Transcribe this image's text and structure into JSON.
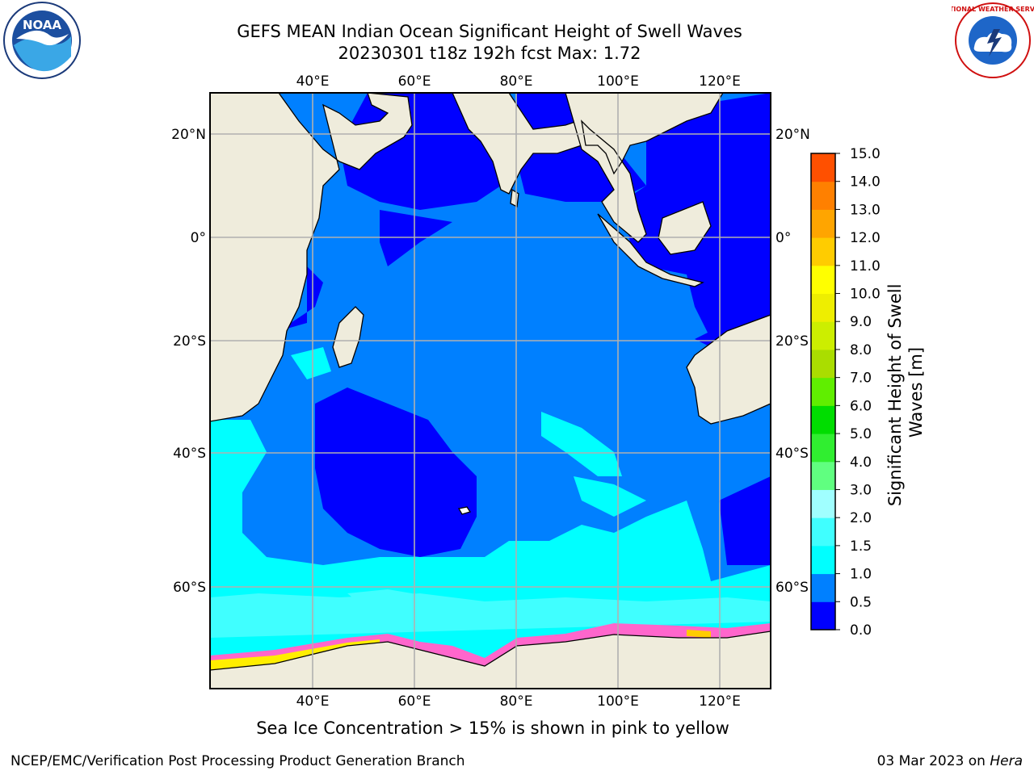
{
  "title": {
    "line1": "GEFS MEAN Indian Ocean Significant Height of Swell Waves",
    "line2": "20230301 t18z 192h fcst   Max: 1.72"
  },
  "map": {
    "lon_ticks": [
      "40°E",
      "60°E",
      "80°E",
      "100°E",
      "120°E"
    ],
    "lat_ticks_left": [
      "20°N",
      "0°",
      "20°S",
      "40°S",
      "60°S"
    ],
    "lat_ticks_right": [
      "20°N",
      "0°",
      "20°S",
      "40°S",
      "60°S"
    ],
    "lon_range": [
      20,
      130
    ],
    "lat_range": [
      -72,
      26
    ],
    "colors": {
      "land": "#efecdc",
      "grid": "#b0b0b0",
      "coast": "#000000"
    }
  },
  "colorbar": {
    "label": "Significant Height of Swell Waves [m]",
    "ticks": [
      "15.0",
      "14.0",
      "13.0",
      "12.0",
      "11.0",
      "10.0",
      "9.0",
      "8.0",
      "7.0",
      "6.0",
      "5.0",
      "4.0",
      "3.0",
      "2.0",
      "1.5",
      "1.0",
      "0.5",
      "0.0"
    ],
    "colors": [
      "#0000ff",
      "#0080ff",
      "#00ffff",
      "#40ffff",
      "#a0ffff",
      "#60ff80",
      "#30ee30",
      "#00dd00",
      "#60ee00",
      "#aadd00",
      "#ccee00",
      "#eeee00",
      "#ffff00",
      "#ffcc00",
      "#ffa500",
      "#ff8000",
      "#ff5000",
      "#ff2000",
      "#ff0000"
    ]
  },
  "note": "Sea Ice Concentration > 15% is shown in pink to yellow",
  "footer": {
    "left": "NCEP/EMC/Verification Post Processing Product Generation Branch",
    "date": "03 Mar 2023 on",
    "host": "Hera"
  },
  "logos": {
    "left": "NOAA",
    "right": "NATIONAL WEATHER SERVICE"
  }
}
